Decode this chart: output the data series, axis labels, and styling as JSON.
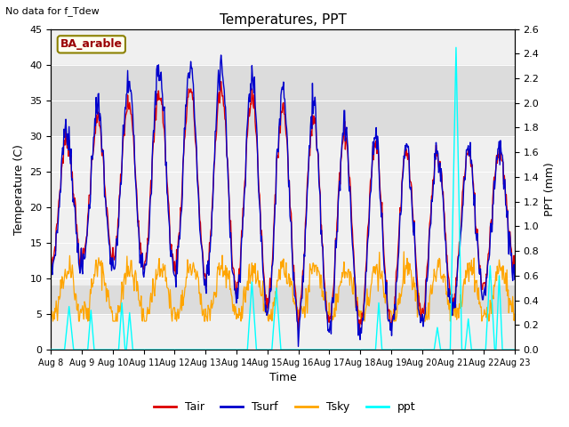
{
  "title": "Temperatures, PPT",
  "xlabel": "Time",
  "ylabel_left": "Temperature (C)",
  "ylabel_right": "PPT (mm)",
  "annotation": "No data for f_Tdew",
  "box_label": "BA_arable",
  "ylim_left": [
    0,
    45
  ],
  "ylim_right": [
    0.0,
    2.6
  ],
  "yticks_left": [
    0,
    5,
    10,
    15,
    20,
    25,
    30,
    35,
    40,
    45
  ],
  "yticks_right": [
    0.0,
    0.2,
    0.4,
    0.6,
    0.8,
    1.0,
    1.2,
    1.4,
    1.6,
    1.8,
    2.0,
    2.2,
    2.4,
    2.6
  ],
  "color_tair": "#dd0000",
  "color_tsurf": "#0000cc",
  "color_tsky": "#ffa500",
  "color_ppt": "#00ffff",
  "color_box_bg": "#fffff0",
  "color_box_border": "#8B8000",
  "legend_entries": [
    "Tair",
    "Tsurf",
    "Tsky",
    "ppt"
  ],
  "bg_band1_lo": 30,
  "bg_band1_hi": 40,
  "bg_band2_lo": 5,
  "bg_band2_hi": 9,
  "bg_color": "#dcdcdc"
}
